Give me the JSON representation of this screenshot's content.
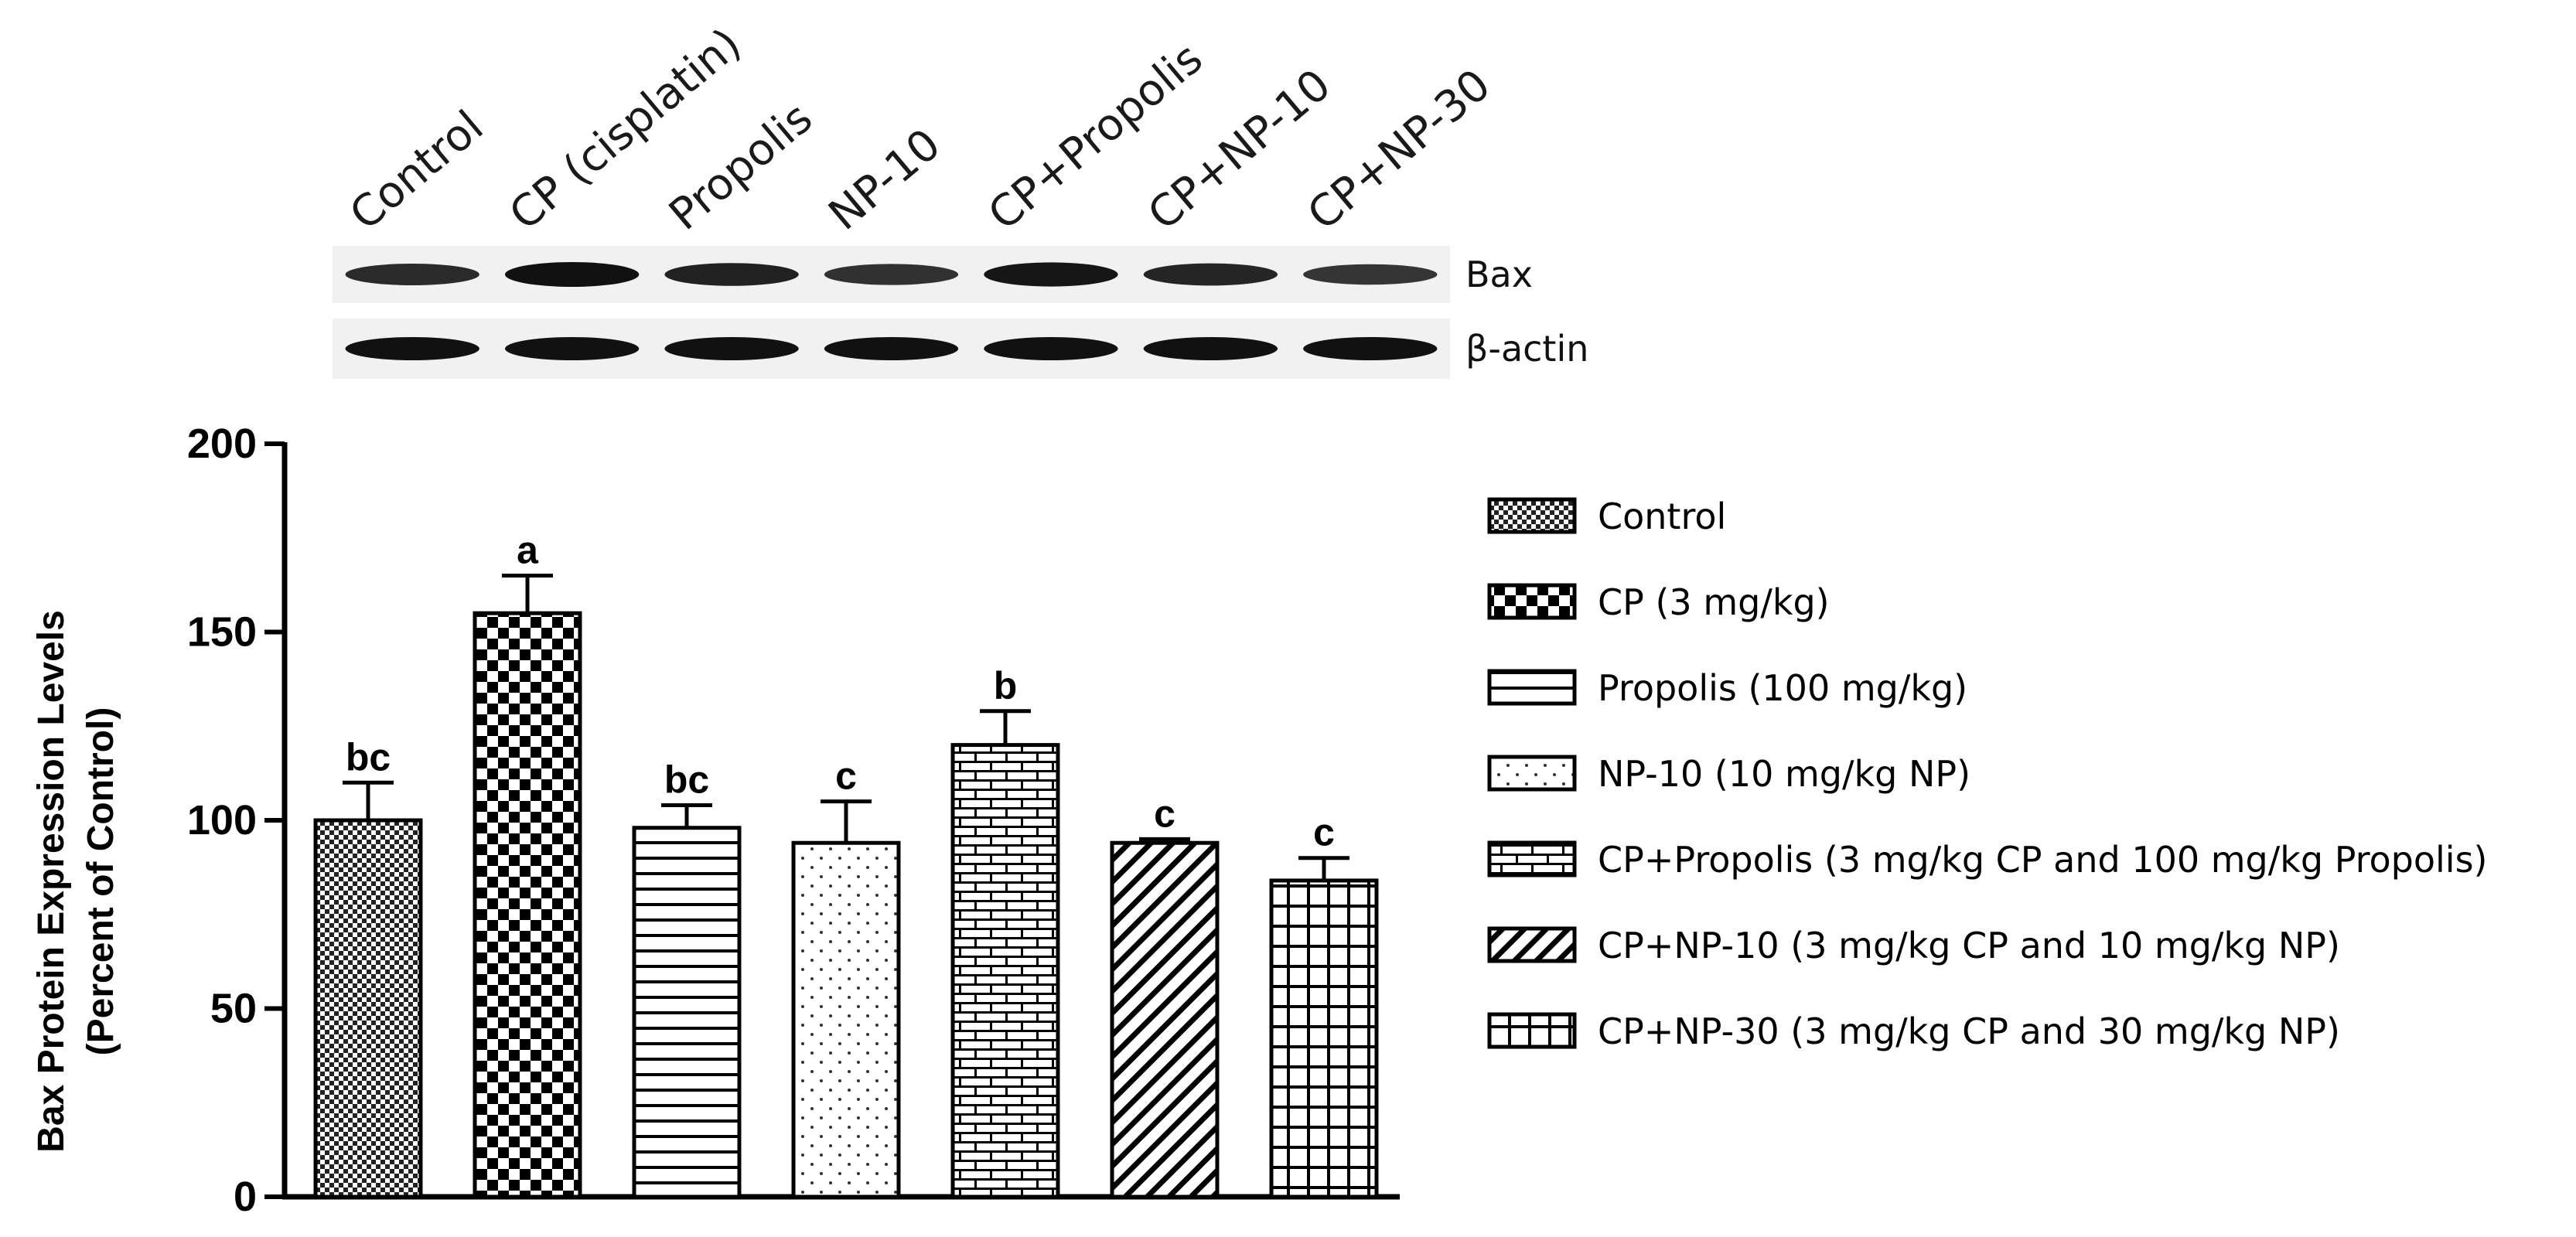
{
  "blot": {
    "lanes": [
      "Control",
      "CP (cisplatin)",
      "Propolis",
      "NP-10",
      "CP+Propolis",
      "CP+NP-10",
      "CP+NP-30"
    ],
    "rows": [
      {
        "label": "Bax",
        "band_intensity": [
          0.75,
          1.0,
          0.85,
          0.7,
          0.95,
          0.8,
          0.65
        ]
      },
      {
        "label": "β-actin",
        "band_intensity": [
          1,
          1,
          1,
          1,
          1,
          1,
          1
        ]
      }
    ]
  },
  "chart_data": {
    "type": "bar",
    "ylabel_line1": "Bax Protein Expression Levels",
    "ylabel_line2": "(Percent of Control)",
    "ylim": [
      0,
      200
    ],
    "yticks": [
      0,
      50,
      100,
      150,
      200
    ],
    "categories": [
      "Control",
      "CP (3 mg/kg)",
      "Propolis (100 mg/kg)",
      "NP-10 (10 mg/kg NP)",
      "CP+Propolis (3 mg/kg CP and 100 mg/kg Propolis)",
      "CP+NP-10 (3 mg/kg CP and 10 mg/kg NP)",
      "CP+NP-30  (3 mg/kg CP and 30 mg/kg NP)"
    ],
    "values": [
      100,
      155,
      98,
      94,
      120,
      94,
      84
    ],
    "errors": [
      10,
      10,
      6,
      11,
      9,
      1,
      6
    ],
    "significance": [
      "bc",
      "a",
      "bc",
      "c",
      "b",
      "c",
      "c"
    ],
    "patterns": [
      "dense-check",
      "checker",
      "hlines",
      "dots",
      "brick",
      "diagonal",
      "grid"
    ],
    "legend_position": "right"
  }
}
